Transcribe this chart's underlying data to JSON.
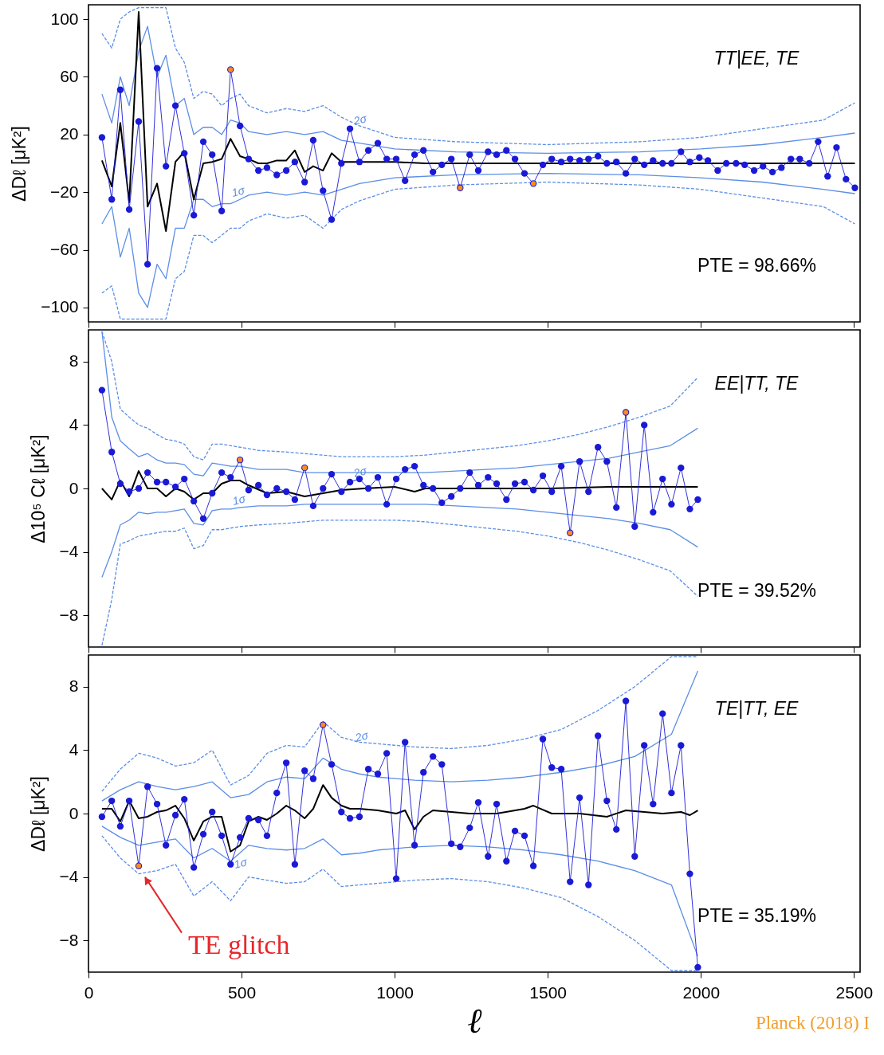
{
  "chart_data": [
    {
      "type": "line",
      "ylabel": "ΔDℓ  [μK²]",
      "xlim": [
        0,
        2520
      ],
      "xticks": [
        0,
        500,
        1000,
        1500,
        2000,
        2500
      ],
      "ylim": [
        -110,
        110
      ],
      "yticks": [
        -100,
        -60,
        -20,
        20,
        60,
        100
      ],
      "tick_labels": "y",
      "x": [
        44,
        76,
        104,
        133,
        164,
        193,
        224,
        253,
        284,
        313,
        344,
        375,
        404,
        435,
        464,
        495,
        523,
        555,
        583,
        615,
        646,
        674,
        706,
        734,
        766,
        794,
        826,
        854,
        885,
        914,
        945,
        974,
        1005,
        1034,
        1065,
        1094,
        1125,
        1154,
        1185,
        1214,
        1245,
        1273,
        1305,
        1333,
        1365,
        1393,
        1424,
        1453,
        1484,
        1513,
        1544,
        1573,
        1604,
        1633,
        1664,
        1693,
        1724,
        1755,
        1784,
        1815,
        1844,
        1875,
        1904,
        1935,
        1964,
        1995,
        2023,
        2055,
        2083,
        2115,
        2143,
        2174,
        2203,
        2234,
        2263,
        2294,
        2323,
        2354,
        2383,
        2414,
        2443,
        2474,
        2503
      ],
      "series": [
        {
          "type": "line",
          "color": "#5b8ee6",
          "line_style": "dashed",
          "marker": "none",
          "x": [
            44,
            76,
            104,
            133,
            164,
            193,
            224,
            253,
            284,
            313,
            344,
            375,
            404,
            435,
            464,
            495,
            523,
            583,
            646,
            706,
            766,
            826,
            885,
            1000,
            1200,
            1500,
            1800,
            2000,
            2200,
            2400,
            2503
          ],
          "values": [
            90,
            80,
            100,
            105,
            108,
            108,
            108,
            108,
            80,
            70,
            45,
            50,
            48,
            40,
            45,
            48,
            40,
            35,
            38,
            36,
            40,
            32,
            26,
            18,
            15,
            13,
            15,
            18,
            24,
            30,
            42
          ]
        },
        {
          "type": "line",
          "color": "#5b8ee6",
          "line_style": "dashed",
          "marker": "none",
          "x": [
            44,
            76,
            104,
            133,
            164,
            193,
            224,
            253,
            284,
            313,
            344,
            375,
            404,
            435,
            464,
            495,
            523,
            583,
            646,
            706,
            766,
            826,
            885,
            1000,
            1200,
            1500,
            1800,
            2000,
            2200,
            2400,
            2503
          ],
          "values": [
            -90,
            -85,
            -108,
            -108,
            -108,
            -108,
            -108,
            -108,
            -80,
            -75,
            -50,
            -50,
            -55,
            -50,
            -45,
            -45,
            -40,
            -35,
            -38,
            -36,
            -45,
            -32,
            -26,
            -18,
            -15,
            -13,
            -15,
            -18,
            -24,
            -30,
            -42
          ]
        },
        {
          "type": "line",
          "color": "#5b8ee6",
          "line_style": "solid",
          "marker": "none",
          "x": [
            44,
            76,
            104,
            133,
            164,
            193,
            224,
            253,
            284,
            313,
            344,
            375,
            404,
            435,
            464,
            495,
            523,
            583,
            646,
            706,
            766,
            826,
            885,
            1000,
            1200,
            1500,
            1800,
            2000,
            2200,
            2400,
            2503
          ],
          "values": [
            48,
            28,
            60,
            40,
            78,
            95,
            60,
            75,
            40,
            45,
            20,
            25,
            25,
            20,
            30,
            28,
            22,
            20,
            22,
            20,
            22,
            16,
            14,
            10,
            8,
            7,
            8,
            10,
            13,
            18,
            21
          ]
        },
        {
          "type": "line",
          "color": "#5b8ee6",
          "line_style": "solid",
          "marker": "none",
          "x": [
            44,
            76,
            104,
            133,
            164,
            193,
            224,
            253,
            284,
            313,
            344,
            375,
            404,
            435,
            464,
            495,
            523,
            583,
            646,
            706,
            766,
            826,
            885,
            1000,
            1200,
            1500,
            1800,
            2000,
            2200,
            2400,
            2503
          ],
          "values": [
            -42,
            -30,
            -65,
            -45,
            -90,
            -100,
            -70,
            -80,
            -45,
            -45,
            -25,
            -25,
            -30,
            -28,
            -28,
            -25,
            -22,
            -20,
            -22,
            -20,
            -22,
            -18,
            -14,
            -10,
            -8,
            -7,
            -8,
            -10,
            -13,
            -18,
            -21
          ]
        },
        {
          "type": "line",
          "color": "#000000",
          "line_style": "solid",
          "marker": "none",
          "x": [
            44,
            76,
            104,
            133,
            164,
            193,
            224,
            253,
            284,
            313,
            344,
            375,
            404,
            435,
            464,
            495,
            523,
            555,
            583,
            615,
            646,
            674,
            706,
            734,
            766,
            794,
            826,
            885,
            1000,
            1100,
            1300,
            1500,
            1800,
            2000,
            2200,
            2503
          ],
          "values": [
            2,
            -16,
            28,
            -27,
            105,
            -30,
            -14,
            -47,
            1,
            8,
            -25,
            0,
            1,
            3,
            17,
            5,
            3,
            0,
            0,
            2,
            2,
            9,
            -6,
            -2,
            -5,
            7,
            1,
            1,
            1,
            0,
            0,
            0,
            0,
            0,
            0,
            0
          ]
        },
        {
          "type": "line",
          "color": "#1a1ad6",
          "line_style": "solid",
          "marker": "circle",
          "values": [
            18,
            -25,
            51,
            -32,
            29,
            -70,
            66,
            -2,
            40,
            7,
            -36,
            15,
            6,
            -33,
            65,
            26,
            3,
            -5,
            -3,
            -8,
            -5,
            1,
            -13,
            16,
            -19,
            -39,
            0,
            24,
            1,
            9,
            14,
            3,
            3,
            -12,
            6,
            9,
            -6,
            -1,
            3,
            -17,
            6,
            -5,
            8,
            6,
            9,
            3,
            -7,
            -14,
            -1,
            3,
            1,
            3,
            2,
            3,
            5,
            0,
            1,
            -7,
            3,
            -1,
            2,
            0,
            0,
            8,
            1,
            4,
            2,
            -5,
            0,
            0,
            -1,
            -5,
            -2,
            -6,
            -3,
            3,
            3,
            0,
            15,
            -9,
            11,
            -11,
            -17
          ]
        },
        {
          "type": "scatter",
          "color": "#ff8c1a",
          "marker": "circle",
          "x": [
            464,
            1214,
            1453
          ],
          "values": [
            65,
            -17,
            -14
          ]
        }
      ],
      "annotations": [
        "TT|EE, TE",
        "PTE = 98.66%",
        "2σ",
        "1σ"
      ]
    },
    {
      "type": "line",
      "ylabel": "Δ10⁵ Cℓ  [μK²]",
      "xlim": [
        0,
        2520
      ],
      "xticks": [
        0,
        500,
        1000,
        1500,
        2000,
        2500
      ],
      "ylim": [
        -10,
        10
      ],
      "yticks": [
        -8,
        -4,
        0,
        4,
        8
      ],
      "tick_labels": "y",
      "x": [
        44,
        76,
        104,
        133,
        164,
        193,
        224,
        253,
        284,
        313,
        344,
        375,
        404,
        435,
        464,
        495,
        523,
        555,
        583,
        615,
        646,
        674,
        706,
        734,
        766,
        794,
        826,
        854,
        885,
        914,
        945,
        974,
        1005,
        1034,
        1065,
        1094,
        1125,
        1154,
        1185,
        1214,
        1245,
        1273,
        1305,
        1333,
        1365,
        1393,
        1424,
        1453,
        1484,
        1513,
        1544,
        1573,
        1604,
        1633,
        1664,
        1693,
        1724,
        1755,
        1784,
        1815,
        1844,
        1875,
        1904,
        1935,
        1964,
        1990
      ],
      "series": [
        {
          "type": "line",
          "color": "#5b8ee6",
          "line_style": "dashed",
          "marker": "none",
          "x": [
            44,
            76,
            104,
            133,
            164,
            193,
            224,
            253,
            284,
            313,
            344,
            375,
            404,
            435,
            464,
            495,
            555,
            646,
            706,
            766,
            826,
            900,
            1000,
            1100,
            1200,
            1300,
            1400,
            1500,
            1600,
            1700,
            1800,
            1900,
            1990
          ],
          "values": [
            9.9,
            8.0,
            5.0,
            4.5,
            4.0,
            3.8,
            3.4,
            3.1,
            3.0,
            2.8,
            2.0,
            1.8,
            2.8,
            2.8,
            2.7,
            2.6,
            2.4,
            2.3,
            2.2,
            2.1,
            2.0,
            2.0,
            2.0,
            2.1,
            2.3,
            2.5,
            2.7,
            3.0,
            3.4,
            3.9,
            4.5,
            5.2,
            7.0
          ]
        },
        {
          "type": "line",
          "color": "#5b8ee6",
          "line_style": "dashed",
          "marker": "none",
          "x": [
            44,
            76,
            104,
            133,
            164,
            193,
            224,
            253,
            284,
            313,
            344,
            375,
            404,
            435,
            464,
            495,
            555,
            646,
            706,
            766,
            826,
            900,
            1000,
            1100,
            1200,
            1300,
            1400,
            1500,
            1600,
            1700,
            1800,
            1900,
            1990
          ],
          "values": [
            -9.9,
            -7.0,
            -3.5,
            -3.3,
            -3.0,
            -2.9,
            -2.8,
            -2.7,
            -2.7,
            -2.5,
            -3.8,
            -3.6,
            -2.6,
            -2.6,
            -2.5,
            -2.4,
            -2.3,
            -2.2,
            -2.1,
            -2.0,
            -2.0,
            -2.0,
            -2.0,
            -2.1,
            -2.3,
            -2.5,
            -2.7,
            -3.0,
            -3.4,
            -3.9,
            -4.5,
            -5.2,
            -6.8
          ]
        },
        {
          "type": "line",
          "color": "#5b8ee6",
          "line_style": "solid",
          "marker": "none",
          "x": [
            44,
            76,
            104,
            133,
            164,
            193,
            224,
            253,
            284,
            313,
            344,
            375,
            404,
            435,
            464,
            495,
            555,
            646,
            706,
            766,
            826,
            900,
            1000,
            1100,
            1200,
            1300,
            1400,
            1500,
            1600,
            1700,
            1800,
            1900,
            1990
          ],
          "values": [
            9.9,
            4.5,
            3.0,
            2.5,
            2.0,
            2.2,
            1.8,
            1.6,
            1.6,
            1.5,
            0.9,
            0.8,
            1.6,
            1.5,
            1.4,
            1.4,
            1.2,
            1.2,
            1.0,
            1.0,
            1.0,
            1.0,
            1.0,
            1.0,
            1.1,
            1.2,
            1.3,
            1.5,
            1.7,
            1.9,
            2.3,
            2.7,
            3.8
          ]
        },
        {
          "type": "line",
          "color": "#5b8ee6",
          "line_style": "solid",
          "marker": "none",
          "x": [
            44,
            76,
            104,
            133,
            164,
            193,
            224,
            253,
            284,
            313,
            344,
            375,
            404,
            435,
            464,
            495,
            555,
            646,
            706,
            766,
            826,
            900,
            1000,
            1100,
            1200,
            1300,
            1400,
            1500,
            1600,
            1700,
            1800,
            1900,
            1990
          ],
          "values": [
            -5.6,
            -4.0,
            -2.3,
            -2.0,
            -1.5,
            -1.6,
            -1.5,
            -1.5,
            -1.4,
            -1.3,
            -2.2,
            -2.3,
            -1.4,
            -1.3,
            -1.3,
            -1.2,
            -1.1,
            -1.1,
            -1.0,
            -1.0,
            -1.0,
            -1.0,
            -1.0,
            -1.0,
            -1.1,
            -1.2,
            -1.3,
            -1.5,
            -1.7,
            -1.9,
            -2.2,
            -2.6,
            -3.7
          ]
        },
        {
          "type": "line",
          "color": "#000000",
          "line_style": "solid",
          "marker": "none",
          "x": [
            44,
            76,
            104,
            133,
            164,
            193,
            224,
            253,
            284,
            313,
            344,
            375,
            404,
            435,
            464,
            495,
            523,
            583,
            646,
            706,
            766,
            826,
            900,
            1000,
            1065,
            1100,
            1300,
            1500,
            1700,
            1990
          ],
          "values": [
            0,
            -0.7,
            0.5,
            -0.5,
            1.1,
            0,
            0,
            -0.5,
            0,
            -0.2,
            -0.7,
            -0.3,
            -0.3,
            0.3,
            0.5,
            0.5,
            0.2,
            -0.3,
            -0.2,
            -0.5,
            -0.3,
            -0.1,
            0,
            0.1,
            -0.2,
            0,
            0,
            0,
            0.1,
            0.1
          ]
        },
        {
          "type": "line",
          "color": "#1a1ad6",
          "line_style": "solid",
          "marker": "circle",
          "values": [
            6.2,
            2.3,
            0.3,
            -0.2,
            0,
            1.0,
            0.4,
            0.4,
            0.1,
            0.6,
            -0.8,
            -1.9,
            -0.3,
            1.0,
            0.7,
            1.8,
            -0.1,
            0.2,
            -0.4,
            0,
            -0.2,
            -0.7,
            1.3,
            -1.1,
            0,
            0.9,
            -0.2,
            0.4,
            0.6,
            0,
            0.7,
            -1.0,
            0.6,
            1.2,
            1.4,
            0.2,
            0,
            -0.9,
            -0.5,
            0,
            1.0,
            0.2,
            0.7,
            0.3,
            -0.7,
            0.3,
            0.4,
            -0.1,
            0.8,
            -0.2,
            1.4,
            -2.8,
            1.7,
            -0.2,
            2.6,
            1.7,
            -1.2,
            4.8,
            -2.4,
            4.0,
            -1.5,
            0.6,
            -1.0,
            1.3,
            -1.3,
            -0.7
          ]
        },
        {
          "type": "scatter",
          "color": "#ff8c1a",
          "marker": "circle",
          "x": [
            495,
            706,
            1573,
            1755
          ],
          "values": [
            1.8,
            1.3,
            -2.8,
            4.8
          ]
        }
      ],
      "annotations": [
        "EE|TT, TE",
        "PTE = 39.52%",
        "2σ",
        "1σ"
      ]
    },
    {
      "type": "line",
      "ylabel": "ΔDℓ  [μK²]",
      "xlabel": "ℓ",
      "xlim": [
        0,
        2520
      ],
      "xticks": [
        0,
        500,
        1000,
        1500,
        2000,
        2500
      ],
      "ylim": [
        -10,
        10
      ],
      "yticks": [
        -8,
        -4,
        0,
        4,
        8
      ],
      "x": [
        44,
        76,
        104,
        133,
        164,
        193,
        224,
        253,
        284,
        313,
        344,
        375,
        404,
        435,
        464,
        495,
        523,
        555,
        583,
        615,
        646,
        674,
        706,
        734,
        766,
        794,
        826,
        854,
        885,
        914,
        945,
        974,
        1005,
        1034,
        1065,
        1094,
        1125,
        1154,
        1185,
        1214,
        1245,
        1273,
        1305,
        1333,
        1365,
        1393,
        1424,
        1453,
        1484,
        1513,
        1544,
        1573,
        1604,
        1633,
        1664,
        1693,
        1724,
        1755,
        1784,
        1815,
        1844,
        1875,
        1904,
        1935,
        1964,
        1990
      ],
      "series": [
        {
          "type": "line",
          "color": "#5b8ee6",
          "line_style": "dashed",
          "marker": "none",
          "x": [
            44,
            104,
            164,
            224,
            284,
            344,
            404,
            464,
            523,
            583,
            646,
            706,
            766,
            826,
            885,
            945,
            1005,
            1065,
            1185,
            1305,
            1424,
            1544,
            1664,
            1784,
            1904,
            1990
          ],
          "values": [
            1.4,
            2.8,
            3.8,
            3.5,
            3.0,
            3.2,
            4.0,
            1.8,
            2.4,
            3.8,
            4.3,
            4.2,
            5.8,
            4.8,
            4.5,
            4.4,
            4.3,
            4.2,
            4.1,
            4.3,
            4.7,
            5.3,
            6.5,
            8.0,
            9.9,
            9.9
          ]
        },
        {
          "type": "line",
          "color": "#5b8ee6",
          "line_style": "dashed",
          "marker": "none",
          "x": [
            44,
            104,
            164,
            224,
            284,
            344,
            404,
            464,
            523,
            583,
            646,
            706,
            766,
            826,
            885,
            945,
            1005,
            1065,
            1185,
            1305,
            1424,
            1544,
            1664,
            1784,
            1904,
            1990
          ],
          "values": [
            -1.4,
            -2.8,
            -3.8,
            -3.6,
            -3.2,
            -5.2,
            -4.3,
            -5.5,
            -4.0,
            -4.2,
            -4.4,
            -4.3,
            -3.5,
            -4.6,
            -4.5,
            -4.4,
            -4.3,
            -4.2,
            -4.1,
            -4.3,
            -4.7,
            -5.3,
            -6.5,
            -8.0,
            -9.9,
            -9.9
          ]
        },
        {
          "type": "line",
          "color": "#5b8ee6",
          "line_style": "solid",
          "marker": "none",
          "x": [
            44,
            104,
            164,
            224,
            284,
            344,
            404,
            464,
            523,
            583,
            646,
            706,
            766,
            826,
            885,
            945,
            1005,
            1065,
            1185,
            1305,
            1424,
            1544,
            1664,
            1784,
            1904,
            1990
          ],
          "values": [
            0.8,
            1.5,
            2.0,
            1.7,
            1.5,
            1.7,
            2.0,
            1.0,
            1.2,
            2.0,
            2.3,
            2.2,
            3.5,
            2.8,
            2.5,
            2.3,
            2.2,
            2.1,
            2.0,
            2.1,
            2.3,
            2.6,
            3.0,
            3.6,
            5.0,
            9.0
          ]
        },
        {
          "type": "line",
          "color": "#5b8ee6",
          "line_style": "solid",
          "marker": "none",
          "x": [
            44,
            104,
            164,
            224,
            284,
            344,
            404,
            464,
            523,
            583,
            646,
            706,
            766,
            826,
            885,
            945,
            1005,
            1065,
            1185,
            1305,
            1424,
            1544,
            1664,
            1784,
            1904,
            1990
          ],
          "values": [
            -0.8,
            -1.5,
            -2.0,
            -1.8,
            -1.6,
            -2.8,
            -2.2,
            -3.0,
            -2.0,
            -2.2,
            -2.3,
            -2.2,
            -1.6,
            -2.6,
            -2.5,
            -2.3,
            -2.2,
            -2.1,
            -2.0,
            -2.1,
            -2.3,
            -2.6,
            -3.0,
            -3.6,
            -4.5,
            -9.0
          ]
        },
        {
          "type": "line",
          "color": "#000000",
          "line_style": "solid",
          "marker": "none",
          "x": [
            44,
            76,
            104,
            133,
            164,
            193,
            224,
            253,
            284,
            313,
            344,
            375,
            404,
            435,
            464,
            495,
            523,
            555,
            583,
            615,
            646,
            674,
            706,
            734,
            766,
            794,
            826,
            854,
            885,
            945,
            1005,
            1034,
            1065,
            1094,
            1125,
            1185,
            1245,
            1333,
            1424,
            1453,
            1513,
            1604,
            1693,
            1755,
            1875,
            1935,
            1964,
            1990
          ],
          "values": [
            0.3,
            0.3,
            -0.5,
            0.8,
            -0.3,
            -0.2,
            0.1,
            0.2,
            0.5,
            -0.3,
            -1.7,
            -0.5,
            -0.2,
            -0.2,
            -2.4,
            -2.0,
            -0.5,
            -0.2,
            -0.4,
            0,
            0.5,
            0.2,
            -0.3,
            0.3,
            1.8,
            1.0,
            0.5,
            0.3,
            0.3,
            0.2,
            0,
            0.2,
            -1.0,
            -0.2,
            0.2,
            0.1,
            0,
            0,
            0.3,
            0.5,
            0,
            0,
            -0.2,
            0.2,
            0,
            0.1,
            -0.1,
            0.2
          ]
        },
        {
          "type": "line",
          "color": "#1a1ad6",
          "line_style": "solid",
          "marker": "circle",
          "values": [
            -0.2,
            0.8,
            -0.8,
            0.8,
            -3.3,
            1.7,
            0.6,
            -2.0,
            -0.1,
            0.9,
            -3.4,
            -1.3,
            0.1,
            -1.4,
            -3.2,
            -1.5,
            -0.3,
            -0.4,
            -1.4,
            1.3,
            3.2,
            -3.2,
            2.7,
            2.2,
            5.6,
            3.1,
            0.1,
            -0.3,
            -0.2,
            2.8,
            2.5,
            3.8,
            -4.1,
            4.5,
            -2.0,
            2.6,
            3.6,
            3.1,
            -1.9,
            -2.1,
            -0.9,
            0.7,
            -2.7,
            0.6,
            -3.0,
            -1.1,
            -1.4,
            -3.3,
            4.7,
            2.9,
            2.8,
            -4.3,
            1.0,
            -4.5,
            4.9,
            0.8,
            -1.0,
            7.1,
            -2.7,
            4.3,
            0.6,
            6.3,
            1.3,
            4.3,
            -3.8,
            -9.7
          ]
        },
        {
          "type": "scatter",
          "color": "#ff8c1a",
          "marker": "circle",
          "x": [
            164,
            766
          ],
          "values": [
            -3.3,
            5.6
          ]
        }
      ],
      "annotations": [
        "TE|TT, EE",
        "PTE = 35.19%",
        "Planck (2018) I",
        "2σ",
        "1σ",
        {
          "text": "TE glitch",
          "x": 164,
          "y": -3.3
        }
      ]
    }
  ]
}
